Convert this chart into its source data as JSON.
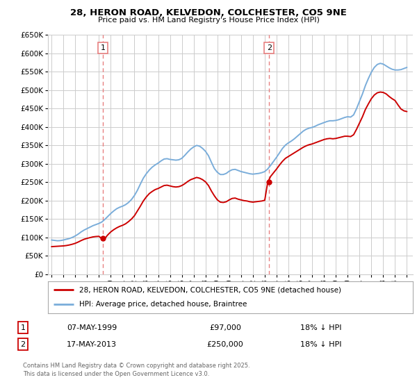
{
  "title": "28, HERON ROAD, KELVEDON, COLCHESTER, CO5 9NE",
  "subtitle": "Price paid vs. HM Land Registry's House Price Index (HPI)",
  "ylim": [
    0,
    650000
  ],
  "xlim_start": 1994.7,
  "xlim_end": 2025.5,
  "yticks": [
    0,
    50000,
    100000,
    150000,
    200000,
    250000,
    300000,
    350000,
    400000,
    450000,
    500000,
    550000,
    600000,
    650000
  ],
  "ytick_labels": [
    "£0",
    "£50K",
    "£100K",
    "£150K",
    "£200K",
    "£250K",
    "£300K",
    "£350K",
    "£400K",
    "£450K",
    "£500K",
    "£550K",
    "£600K",
    "£650K"
  ],
  "sale1_x": 1999.35,
  "sale1_y": 97000,
  "sale2_x": 2013.37,
  "sale2_y": 250000,
  "sale1_label": "07-MAY-1999",
  "sale2_label": "17-MAY-2013",
  "sale1_price": "£97,000",
  "sale2_price": "£250,000",
  "sale1_hpi": "18% ↓ HPI",
  "sale2_hpi": "18% ↓ HPI",
  "line_color_price": "#cc0000",
  "line_color_hpi": "#7aadda",
  "vline_color": "#e88080",
  "grid_color": "#cccccc",
  "background_color": "#ffffff",
  "legend_label_price": "28, HERON ROAD, KELVEDON, COLCHESTER, CO5 9NE (detached house)",
  "legend_label_hpi": "HPI: Average price, detached house, Braintree",
  "footer_text": "Contains HM Land Registry data © Crown copyright and database right 2025.\nThis data is licensed under the Open Government Licence v3.0.",
  "hpi_data_x": [
    1995.0,
    1995.25,
    1995.5,
    1995.75,
    1996.0,
    1996.25,
    1996.5,
    1996.75,
    1997.0,
    1997.25,
    1997.5,
    1997.75,
    1998.0,
    1998.25,
    1998.5,
    1998.75,
    1999.0,
    1999.25,
    1999.5,
    1999.75,
    2000.0,
    2000.25,
    2000.5,
    2000.75,
    2001.0,
    2001.25,
    2001.5,
    2001.75,
    2002.0,
    2002.25,
    2002.5,
    2002.75,
    2003.0,
    2003.25,
    2003.5,
    2003.75,
    2004.0,
    2004.25,
    2004.5,
    2004.75,
    2005.0,
    2005.25,
    2005.5,
    2005.75,
    2006.0,
    2006.25,
    2006.5,
    2006.75,
    2007.0,
    2007.25,
    2007.5,
    2007.75,
    2008.0,
    2008.25,
    2008.5,
    2008.75,
    2009.0,
    2009.25,
    2009.5,
    2009.75,
    2010.0,
    2010.25,
    2010.5,
    2010.75,
    2011.0,
    2011.25,
    2011.5,
    2011.75,
    2012.0,
    2012.25,
    2012.5,
    2012.75,
    2013.0,
    2013.25,
    2013.5,
    2013.75,
    2014.0,
    2014.25,
    2014.5,
    2014.75,
    2015.0,
    2015.25,
    2015.5,
    2015.75,
    2016.0,
    2016.25,
    2016.5,
    2016.75,
    2017.0,
    2017.25,
    2017.5,
    2017.75,
    2018.0,
    2018.25,
    2018.5,
    2018.75,
    2019.0,
    2019.25,
    2019.5,
    2019.75,
    2020.0,
    2020.25,
    2020.5,
    2020.75,
    2021.0,
    2021.25,
    2021.5,
    2021.75,
    2022.0,
    2022.25,
    2022.5,
    2022.75,
    2023.0,
    2023.25,
    2023.5,
    2023.75,
    2024.0,
    2024.25,
    2024.5,
    2024.75,
    2025.0
  ],
  "hpi_data_y": [
    93000,
    92000,
    91000,
    91500,
    93000,
    95000,
    97000,
    100000,
    104000,
    109000,
    115000,
    120000,
    124000,
    128000,
    132000,
    135000,
    138000,
    142000,
    149000,
    157000,
    165000,
    172000,
    178000,
    182000,
    185000,
    189000,
    195000,
    203000,
    214000,
    228000,
    245000,
    261000,
    273000,
    283000,
    291000,
    297000,
    302000,
    308000,
    313000,
    314000,
    312000,
    311000,
    310000,
    311000,
    315000,
    323000,
    332000,
    340000,
    346000,
    350000,
    348000,
    342000,
    334000,
    322000,
    304000,
    287000,
    277000,
    271000,
    271000,
    274000,
    280000,
    284000,
    285000,
    282000,
    279000,
    277000,
    275000,
    273000,
    272000,
    273000,
    274000,
    276000,
    279000,
    286000,
    296000,
    307000,
    318000,
    330000,
    342000,
    351000,
    357000,
    362000,
    368000,
    375000,
    382000,
    389000,
    394000,
    397000,
    399000,
    402000,
    406000,
    409000,
    412000,
    415000,
    417000,
    417000,
    418000,
    420000,
    423000,
    426000,
    428000,
    427000,
    433000,
    450000,
    470000,
    490000,
    513000,
    532000,
    549000,
    562000,
    570000,
    573000,
    571000,
    566000,
    561000,
    557000,
    555000,
    555000,
    556000,
    559000,
    562000
  ],
  "price_data_x": [
    1995.0,
    1995.25,
    1995.5,
    1995.75,
    1996.0,
    1996.25,
    1996.5,
    1996.75,
    1997.0,
    1997.25,
    1997.5,
    1997.75,
    1998.0,
    1998.25,
    1998.5,
    1998.75,
    1999.0,
    1999.25,
    1999.5,
    1999.75,
    2000.0,
    2000.25,
    2000.5,
    2000.75,
    2001.0,
    2001.25,
    2001.5,
    2001.75,
    2002.0,
    2002.25,
    2002.5,
    2002.75,
    2003.0,
    2003.25,
    2003.5,
    2003.75,
    2004.0,
    2004.25,
    2004.5,
    2004.75,
    2005.0,
    2005.25,
    2005.5,
    2005.75,
    2006.0,
    2006.25,
    2006.5,
    2006.75,
    2007.0,
    2007.25,
    2007.5,
    2007.75,
    2008.0,
    2008.25,
    2008.5,
    2008.75,
    2009.0,
    2009.25,
    2009.5,
    2009.75,
    2010.0,
    2010.25,
    2010.5,
    2010.75,
    2011.0,
    2011.25,
    2011.5,
    2011.75,
    2012.0,
    2012.25,
    2012.5,
    2012.75,
    2013.0,
    2013.25,
    2013.5,
    2013.75,
    2014.0,
    2014.25,
    2014.5,
    2014.75,
    2015.0,
    2015.25,
    2015.5,
    2015.75,
    2016.0,
    2016.25,
    2016.5,
    2016.75,
    2017.0,
    2017.25,
    2017.5,
    2017.75,
    2018.0,
    2018.25,
    2018.5,
    2018.75,
    2019.0,
    2019.25,
    2019.5,
    2019.75,
    2020.0,
    2020.25,
    2020.5,
    2020.75,
    2021.0,
    2021.25,
    2021.5,
    2021.75,
    2022.0,
    2022.25,
    2022.5,
    2022.75,
    2023.0,
    2023.25,
    2023.5,
    2023.75,
    2024.0,
    2024.25,
    2024.5,
    2024.75,
    2025.0
  ],
  "price_data_y": [
    75000,
    75500,
    76000,
    76500,
    77000,
    78000,
    79500,
    81500,
    84000,
    87500,
    91500,
    95000,
    97500,
    99500,
    101500,
    102500,
    103000,
    97000,
    97000,
    107000,
    115000,
    121000,
    126000,
    130000,
    133000,
    137000,
    143000,
    150000,
    159000,
    172000,
    185000,
    199000,
    210000,
    219000,
    225000,
    230000,
    233000,
    237000,
    241000,
    242000,
    240000,
    238000,
    237000,
    238000,
    241000,
    246000,
    252000,
    257000,
    260000,
    263000,
    261000,
    257000,
    251000,
    241000,
    226000,
    213000,
    202000,
    196000,
    195000,
    197000,
    202000,
    206000,
    207000,
    204000,
    202000,
    200000,
    199000,
    197000,
    196000,
    197000,
    198000,
    199000,
    201000,
    250000,
    266000,
    276000,
    286000,
    297000,
    307000,
    315000,
    320000,
    325000,
    330000,
    335000,
    340000,
    345000,
    349000,
    352000,
    354000,
    357000,
    360000,
    363000,
    366000,
    368000,
    369000,
    368000,
    369000,
    371000,
    373000,
    375000,
    375000,
    374000,
    379000,
    394000,
    411000,
    428000,
    448000,
    463000,
    477000,
    487000,
    493000,
    495000,
    494000,
    490000,
    483000,
    477000,
    472000,
    460000,
    449000,
    444000,
    442000
  ]
}
